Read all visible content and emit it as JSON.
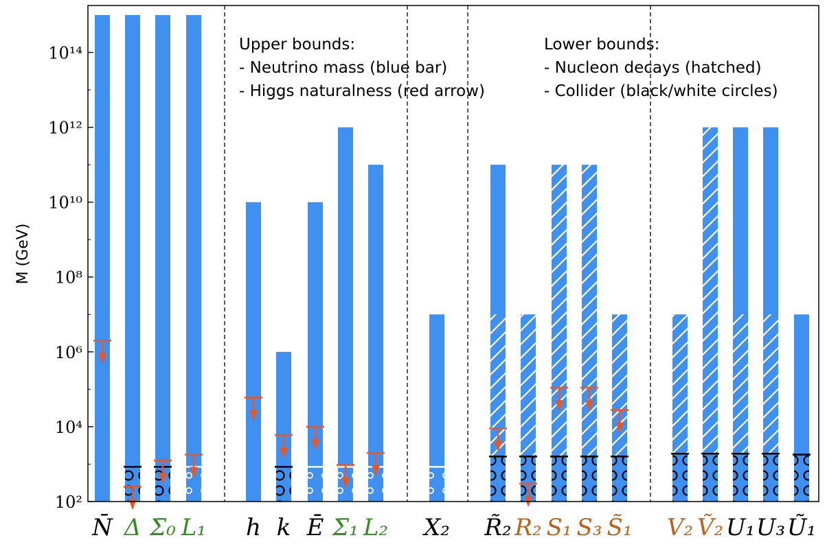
{
  "chart_data": {
    "type": "bar",
    "yscale": "log",
    "ylabel": "M (GeV)",
    "ylim": [
      100,
      1000000000000000.0
    ],
    "yticks": [
      {
        "value": 100,
        "label": "10²"
      },
      {
        "value": 10000,
        "label": "10⁴"
      },
      {
        "value": 1000000,
        "label": "10⁶"
      },
      {
        "value": 100000000,
        "label": "10⁸"
      },
      {
        "value": 10000000000,
        "label": "10¹⁰"
      },
      {
        "value": 1000000000000,
        "label": "10¹²"
      },
      {
        "value": 100000000000000,
        "label": "10¹⁴"
      }
    ],
    "categories": [
      {
        "label": "N̄",
        "group": 0,
        "color": "#000000",
        "upper_bound": 1000000000000000.0,
        "hatch_upto": null,
        "collider": null,
        "collider_marker": null,
        "higgs_arrow": 2000000
      },
      {
        "label": "Δ",
        "group": 0,
        "color": "#3a8a2a",
        "upper_bound": 1000000000000000.0,
        "hatch_upto": null,
        "collider": 850,
        "collider_marker": "black",
        "higgs_arrow": 250
      },
      {
        "label": "Σ̄₀",
        "group": 0,
        "color": "#3a8a2a",
        "upper_bound": 1000000000000000.0,
        "hatch_upto": null,
        "collider": 850,
        "collider_marker": "black",
        "higgs_arrow": 1250
      },
      {
        "label": "L₁",
        "group": 0,
        "color": "#3a8a2a",
        "upper_bound": 1000000000000000.0,
        "hatch_upto": null,
        "collider": 850,
        "collider_marker": "white",
        "higgs_arrow": 1800
      },
      {
        "label": "h",
        "group": 1,
        "color": "#000000",
        "upper_bound": 10000000000.0,
        "hatch_upto": null,
        "collider": null,
        "collider_marker": null,
        "higgs_arrow": 60000
      },
      {
        "label": "k",
        "group": 1,
        "color": "#000000",
        "upper_bound": 1000000,
        "hatch_upto": null,
        "collider": 850,
        "collider_marker": "black",
        "higgs_arrow": 6000
      },
      {
        "label": "Ē",
        "group": 1,
        "color": "#000000",
        "upper_bound": 10000000000.0,
        "hatch_upto": null,
        "collider": 850,
        "collider_marker": "white",
        "higgs_arrow": 10000
      },
      {
        "label": "Σ̄₁",
        "group": 1,
        "color": "#3a8a2a",
        "upper_bound": 1000000000000.0,
        "hatch_upto": null,
        "collider": 850,
        "collider_marker": "white",
        "higgs_arrow": 950
      },
      {
        "label": "L₂",
        "group": 1,
        "color": "#3a8a2a",
        "upper_bound": 100000000000.0,
        "hatch_upto": null,
        "collider": 850,
        "collider_marker": "white",
        "higgs_arrow": 2000
      },
      {
        "label": "X₂",
        "group": 2,
        "color": "#000000",
        "upper_bound": 10000000,
        "hatch_upto": null,
        "collider": 850,
        "collider_marker": "white",
        "higgs_arrow": null
      },
      {
        "label": "R̃₂",
        "group": 3,
        "color": "#000000",
        "upper_bound": 100000000000.0,
        "hatch_upto": 10000000,
        "collider": 1600,
        "collider_marker": "black",
        "higgs_arrow": 9000
      },
      {
        "label": "R₂",
        "group": 3,
        "color": "#b5651d",
        "upper_bound": 10000000,
        "hatch_upto": 10000000,
        "collider": 1600,
        "collider_marker": "black",
        "higgs_arrow": 300
      },
      {
        "label": "S₁",
        "group": 3,
        "color": "#b5651d",
        "upper_bound": 100000000000.0,
        "hatch_upto": 100000000000.0,
        "collider": 1600,
        "collider_marker": "black",
        "higgs_arrow": 110000
      },
      {
        "label": "S₃",
        "group": 3,
        "color": "#b5651d",
        "upper_bound": 100000000000.0,
        "hatch_upto": 100000000000.0,
        "collider": 1600,
        "collider_marker": "black",
        "higgs_arrow": 110000
      },
      {
        "label": "S̃₁",
        "group": 3,
        "color": "#b5651d",
        "upper_bound": 10000000,
        "hatch_upto": 10000000,
        "collider": 1600,
        "collider_marker": "black",
        "higgs_arrow": 28000
      },
      {
        "label": "V₂",
        "group": 4,
        "color": "#b5651d",
        "upper_bound": 10000000,
        "hatch_upto": 10000000,
        "collider": 1900,
        "collider_marker": "black",
        "higgs_arrow": null
      },
      {
        "label": "Ṽ₂",
        "group": 4,
        "color": "#b5651d",
        "upper_bound": 1000000000000.0,
        "hatch_upto": 1000000000000.0,
        "collider": 1900,
        "collider_marker": "black",
        "higgs_arrow": null
      },
      {
        "label": "U₁",
        "group": 4,
        "color": "#000000",
        "upper_bound": 1000000000000.0,
        "hatch_upto": 10000000,
        "collider": 1900,
        "collider_marker": "black",
        "higgs_arrow": null
      },
      {
        "label": "U₃",
        "group": 4,
        "color": "#000000",
        "upper_bound": 1000000000000.0,
        "hatch_upto": 10000000,
        "collider": 1900,
        "collider_marker": "black",
        "higgs_arrow": null
      },
      {
        "label": "Ũ₁",
        "group": 4,
        "color": "#000000",
        "upper_bound": 10000000,
        "hatch_upto": null,
        "collider": 1800,
        "collider_marker": "black",
        "higgs_arrow": null
      }
    ],
    "annotations": [
      {
        "title": "Upper bounds:",
        "lines": [
          "- Neutrino mass (blue bar)",
          "- Higgs naturalness (red arrow)"
        ],
        "placement": "top-center-left"
      },
      {
        "title": "Lower bounds:",
        "lines": [
          "- Nucleon decays (hatched)",
          "- Collider (black/white circles)"
        ],
        "placement": "top-center-right"
      }
    ],
    "colors": {
      "bar": "#4090f0",
      "arrow": "#e05a30",
      "black_label": "#000000",
      "green_label": "#3a8a2a",
      "brown_label": "#b5651d"
    }
  }
}
